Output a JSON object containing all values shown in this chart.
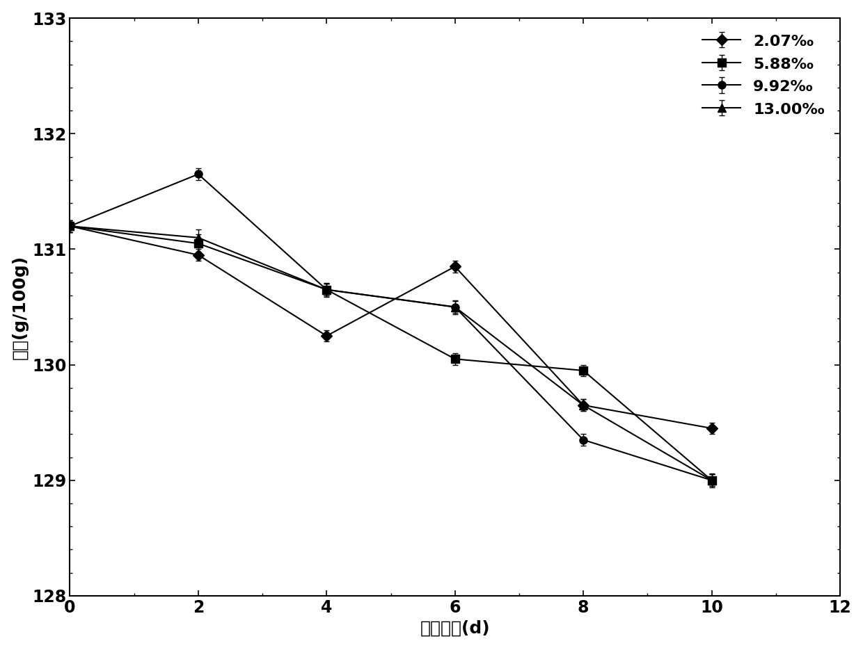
{
  "x": [
    0,
    2,
    4,
    6,
    8,
    10
  ],
  "series": [
    {
      "label": "2.07‰",
      "y": [
        131.2,
        130.95,
        130.25,
        130.85,
        129.65,
        129.45
      ],
      "yerr": [
        0.05,
        0.05,
        0.05,
        0.05,
        0.05,
        0.05
      ],
      "marker": "D",
      "markersize": 8
    },
    {
      "label": "5.88‰",
      "y": [
        131.2,
        131.05,
        130.65,
        130.05,
        129.95,
        129.0
      ],
      "yerr": [
        0.05,
        0.08,
        0.06,
        0.05,
        0.05,
        0.05
      ],
      "marker": "s",
      "markersize": 8
    },
    {
      "label": "9.92‰",
      "y": [
        131.2,
        131.65,
        130.65,
        130.5,
        129.35,
        129.0
      ],
      "yerr": [
        0.05,
        0.05,
        0.05,
        0.06,
        0.05,
        0.05
      ],
      "marker": "o",
      "markersize": 8
    },
    {
      "label": "13.00‰",
      "y": [
        131.2,
        131.1,
        130.65,
        130.5,
        129.65,
        129.0
      ],
      "yerr": [
        0.05,
        0.07,
        0.05,
        0.05,
        0.05,
        0.06
      ],
      "marker": "^",
      "markersize": 8
    }
  ],
  "xlabel": "加热时间(d)",
  "ylabel": "碘値(g/100g)",
  "xlim": [
    0,
    12
  ],
  "ylim": [
    128,
    133
  ],
  "yticks": [
    128,
    129,
    130,
    131,
    132,
    133
  ],
  "xticks": [
    0,
    2,
    4,
    6,
    8,
    10,
    12
  ],
  "color": "#000000",
  "linewidth": 1.5,
  "capsize": 3,
  "legend_fontsize": 16,
  "axis_fontsize": 18,
  "tick_fontsize": 17
}
